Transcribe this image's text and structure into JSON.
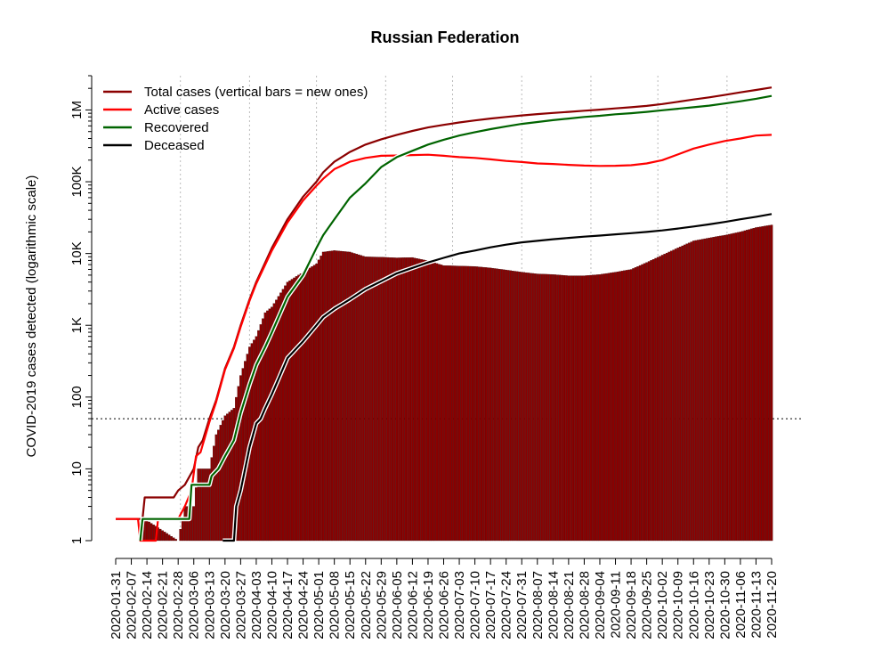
{
  "chart_data": {
    "type": "bar+line",
    "title": "Russian Federation",
    "ylabel": "COVID-2019 cases detected (logarithmic scale)",
    "xlabel": "",
    "y_scale": "log10",
    "ylim": [
      1,
      3000000
    ],
    "xlim": [
      "2020-01-31",
      "2020-11-20"
    ],
    "grid": "vertical dotted at 2020-02-29, 2020-03-31, 2020-04-30, 2020-05-31, 2020-06-30, 2020-07-31, 2020-08-31, 2020-09-30, 2020-10-31",
    "reference_line": {
      "y": 50,
      "style": "dotted"
    },
    "legend_position": "top-left",
    "y_ticks": [
      {
        "value": 1,
        "label": "1"
      },
      {
        "value": 10,
        "label": "10"
      },
      {
        "value": 100,
        "label": "100"
      },
      {
        "value": 1000,
        "label": "1K"
      },
      {
        "value": 10000,
        "label": "10K"
      },
      {
        "value": 100000,
        "label": "100K"
      },
      {
        "value": 1000000,
        "label": "1M"
      }
    ],
    "x_ticks": [
      "2020-01-31",
      "2020-02-07",
      "2020-02-14",
      "2020-02-21",
      "2020-02-28",
      "2020-03-06",
      "2020-03-13",
      "2020-03-20",
      "2020-03-27",
      "2020-04-03",
      "2020-04-10",
      "2020-04-17",
      "2020-04-24",
      "2020-05-01",
      "2020-05-08",
      "2020-05-15",
      "2020-05-22",
      "2020-05-29",
      "2020-06-05",
      "2020-06-12",
      "2020-06-19",
      "2020-06-26",
      "2020-07-03",
      "2020-07-10",
      "2020-07-17",
      "2020-07-24",
      "2020-07-31",
      "2020-08-07",
      "2020-08-14",
      "2020-08-21",
      "2020-08-28",
      "2020-09-04",
      "2020-09-11",
      "2020-09-18",
      "2020-09-25",
      "2020-10-02",
      "2020-10-09",
      "2020-10-16",
      "2020-10-23",
      "2020-10-30",
      "2020-11-06",
      "2020-11-13",
      "2020-11-20"
    ],
    "series": [
      {
        "name": "Total cases (vertical bars = new ones)",
        "kind": "line",
        "color": "#8b0000",
        "points": [
          [
            "2020-01-31",
            2
          ],
          [
            "2020-02-07",
            2
          ],
          [
            "2020-02-12",
            2
          ],
          [
            "2020-02-13",
            4
          ],
          [
            "2020-02-26",
            4
          ],
          [
            "2020-02-28",
            5
          ],
          [
            "2020-03-02",
            6
          ],
          [
            "2020-03-06",
            10
          ],
          [
            "2020-03-08",
            20
          ],
          [
            "2020-03-10",
            25
          ],
          [
            "2020-03-13",
            50
          ],
          [
            "2020-03-16",
            90
          ],
          [
            "2020-03-20",
            250
          ],
          [
            "2020-03-24",
            500
          ],
          [
            "2020-03-27",
            1000
          ],
          [
            "2020-03-31",
            2300
          ],
          [
            "2020-04-03",
            4000
          ],
          [
            "2020-04-07",
            7500
          ],
          [
            "2020-04-10",
            12000
          ],
          [
            "2020-04-17",
            30000
          ],
          [
            "2020-04-24",
            62000
          ],
          [
            "2020-04-30",
            100000
          ],
          [
            "2020-05-03",
            135000
          ],
          [
            "2020-05-08",
            190000
          ],
          [
            "2020-05-15",
            260000
          ],
          [
            "2020-05-22",
            330000
          ],
          [
            "2020-05-29",
            390000
          ],
          [
            "2020-06-05",
            450000
          ],
          [
            "2020-06-12",
            510000
          ],
          [
            "2020-06-19",
            570000
          ],
          [
            "2020-06-26",
            620000
          ],
          [
            "2020-07-03",
            670000
          ],
          [
            "2020-07-10",
            715000
          ],
          [
            "2020-07-17",
            760000
          ],
          [
            "2020-07-24",
            800000
          ],
          [
            "2020-07-31",
            840000
          ],
          [
            "2020-08-07",
            875000
          ],
          [
            "2020-08-14",
            910000
          ],
          [
            "2020-08-21",
            940000
          ],
          [
            "2020-08-28",
            975000
          ],
          [
            "2020-09-04",
            1010000
          ],
          [
            "2020-09-11",
            1050000
          ],
          [
            "2020-09-18",
            1090000
          ],
          [
            "2020-09-25",
            1140000
          ],
          [
            "2020-10-02",
            1210000
          ],
          [
            "2020-10-09",
            1300000
          ],
          [
            "2020-10-16",
            1400000
          ],
          [
            "2020-10-23",
            1500000
          ],
          [
            "2020-10-30",
            1620000
          ],
          [
            "2020-11-06",
            1760000
          ],
          [
            "2020-11-13",
            1900000
          ],
          [
            "2020-11-20",
            2060000
          ]
        ]
      },
      {
        "name": "Active cases",
        "kind": "line",
        "color": "#ff0000",
        "points": [
          [
            "2020-01-31",
            2
          ],
          [
            "2020-02-07",
            2
          ],
          [
            "2020-02-10",
            2
          ],
          [
            "2020-02-11",
            1
          ],
          [
            "2020-02-18",
            1
          ],
          [
            "2020-02-19",
            2
          ],
          [
            "2020-02-28",
            2
          ],
          [
            "2020-03-02",
            3
          ],
          [
            "2020-03-05",
            5
          ],
          [
            "2020-03-07",
            15
          ],
          [
            "2020-03-09",
            17
          ],
          [
            "2020-03-13",
            45
          ],
          [
            "2020-03-16",
            85
          ],
          [
            "2020-03-20",
            240
          ],
          [
            "2020-03-24",
            480
          ],
          [
            "2020-03-27",
            950
          ],
          [
            "2020-03-31",
            2200
          ],
          [
            "2020-04-03",
            3800
          ],
          [
            "2020-04-07",
            7000
          ],
          [
            "2020-04-10",
            11000
          ],
          [
            "2020-04-17",
            27000
          ],
          [
            "2020-04-24",
            55000
          ],
          [
            "2020-04-30",
            88000
          ],
          [
            "2020-05-03",
            110000
          ],
          [
            "2020-05-08",
            150000
          ],
          [
            "2020-05-15",
            190000
          ],
          [
            "2020-05-22",
            215000
          ],
          [
            "2020-05-29",
            230000
          ],
          [
            "2020-06-05",
            232000
          ],
          [
            "2020-06-12",
            235000
          ],
          [
            "2020-06-19",
            238000
          ],
          [
            "2020-06-26",
            230000
          ],
          [
            "2020-07-03",
            220000
          ],
          [
            "2020-07-10",
            215000
          ],
          [
            "2020-07-17",
            205000
          ],
          [
            "2020-07-24",
            195000
          ],
          [
            "2020-07-31",
            188000
          ],
          [
            "2020-08-07",
            180000
          ],
          [
            "2020-08-14",
            177000
          ],
          [
            "2020-08-21",
            172000
          ],
          [
            "2020-08-28",
            168000
          ],
          [
            "2020-09-04",
            166000
          ],
          [
            "2020-09-11",
            167000
          ],
          [
            "2020-09-18",
            170000
          ],
          [
            "2020-09-25",
            180000
          ],
          [
            "2020-10-02",
            200000
          ],
          [
            "2020-10-09",
            240000
          ],
          [
            "2020-10-16",
            290000
          ],
          [
            "2020-10-23",
            330000
          ],
          [
            "2020-10-30",
            370000
          ],
          [
            "2020-11-06",
            400000
          ],
          [
            "2020-11-13",
            440000
          ],
          [
            "2020-11-20",
            450000
          ]
        ]
      },
      {
        "name": "Recovered",
        "kind": "line",
        "color": "#006400",
        "points": [
          [
            "2020-02-11",
            1
          ],
          [
            "2020-02-12",
            2
          ],
          [
            "2020-03-04",
            2
          ],
          [
            "2020-03-05",
            6
          ],
          [
            "2020-03-13",
            6
          ],
          [
            "2020-03-14",
            8
          ],
          [
            "2020-03-17",
            10
          ],
          [
            "2020-03-20",
            15
          ],
          [
            "2020-03-24",
            25
          ],
          [
            "2020-03-27",
            60
          ],
          [
            "2020-03-31",
            150
          ],
          [
            "2020-04-03",
            280
          ],
          [
            "2020-04-07",
            500
          ],
          [
            "2020-04-10",
            800
          ],
          [
            "2020-04-17",
            2500
          ],
          [
            "2020-04-24",
            5000
          ],
          [
            "2020-04-30",
            12000
          ],
          [
            "2020-05-03",
            18000
          ],
          [
            "2020-05-08",
            30000
          ],
          [
            "2020-05-15",
            60000
          ],
          [
            "2020-05-22",
            95000
          ],
          [
            "2020-05-29",
            160000
          ],
          [
            "2020-06-05",
            220000
          ],
          [
            "2020-06-12",
            270000
          ],
          [
            "2020-06-19",
            330000
          ],
          [
            "2020-06-26",
            385000
          ],
          [
            "2020-07-03",
            440000
          ],
          [
            "2020-07-10",
            490000
          ],
          [
            "2020-07-17",
            540000
          ],
          [
            "2020-07-24",
            590000
          ],
          [
            "2020-07-31",
            640000
          ],
          [
            "2020-08-07",
            680000
          ],
          [
            "2020-08-14",
            720000
          ],
          [
            "2020-08-21",
            760000
          ],
          [
            "2020-08-28",
            800000
          ],
          [
            "2020-09-04",
            830000
          ],
          [
            "2020-09-11",
            870000
          ],
          [
            "2020-09-18",
            900000
          ],
          [
            "2020-09-25",
            940000
          ],
          [
            "2020-10-02",
            990000
          ],
          [
            "2020-10-09",
            1040000
          ],
          [
            "2020-10-16",
            1090000
          ],
          [
            "2020-10-23",
            1150000
          ],
          [
            "2020-10-30",
            1230000
          ],
          [
            "2020-11-06",
            1320000
          ],
          [
            "2020-11-13",
            1430000
          ],
          [
            "2020-11-20",
            1570000
          ]
        ]
      },
      {
        "name": "Deceased",
        "kind": "line",
        "color": "#000000",
        "points": [
          [
            "2020-03-19",
            1
          ],
          [
            "2020-03-24",
            1
          ],
          [
            "2020-03-25",
            3
          ],
          [
            "2020-03-27",
            5
          ],
          [
            "2020-03-31",
            20
          ],
          [
            "2020-04-03",
            43
          ],
          [
            "2020-04-05",
            50
          ],
          [
            "2020-04-07",
            70
          ],
          [
            "2020-04-10",
            110
          ],
          [
            "2020-04-13",
            180
          ],
          [
            "2020-04-17",
            350
          ],
          [
            "2020-04-24",
            600
          ],
          [
            "2020-04-30",
            1000
          ],
          [
            "2020-05-03",
            1300
          ],
          [
            "2020-05-08",
            1700
          ],
          [
            "2020-05-15",
            2300
          ],
          [
            "2020-05-22",
            3200
          ],
          [
            "2020-05-29",
            4100
          ],
          [
            "2020-06-05",
            5300
          ],
          [
            "2020-06-12",
            6300
          ],
          [
            "2020-06-19",
            7500
          ],
          [
            "2020-06-26",
            8700
          ],
          [
            "2020-07-03",
            10000
          ],
          [
            "2020-07-10",
            11000
          ],
          [
            "2020-07-17",
            12200
          ],
          [
            "2020-07-24",
            13300
          ],
          [
            "2020-07-31",
            14300
          ],
          [
            "2020-08-07",
            15000
          ],
          [
            "2020-08-14",
            15800
          ],
          [
            "2020-08-21",
            16500
          ],
          [
            "2020-08-28",
            17200
          ],
          [
            "2020-09-04",
            17800
          ],
          [
            "2020-09-11",
            18500
          ],
          [
            "2020-09-18",
            19200
          ],
          [
            "2020-09-25",
            20000
          ],
          [
            "2020-10-02",
            21000
          ],
          [
            "2020-10-09",
            22300
          ],
          [
            "2020-10-16",
            23800
          ],
          [
            "2020-10-23",
            25500
          ],
          [
            "2020-10-30",
            27500
          ],
          [
            "2020-11-06",
            30000
          ],
          [
            "2020-11-13",
            32500
          ],
          [
            "2020-11-20",
            35500
          ]
        ]
      },
      {
        "name": "New cases",
        "kind": "bars",
        "color": "#8b0000",
        "profile": [
          [
            "2020-01-31",
            1
          ],
          [
            "2020-02-11",
            1
          ],
          [
            "2020-02-13",
            2
          ],
          [
            "2020-02-28",
            1
          ],
          [
            "2020-03-02",
            3
          ],
          [
            "2020-03-06",
            3
          ],
          [
            "2020-03-08",
            10
          ],
          [
            "2020-03-13",
            10
          ],
          [
            "2020-03-16",
            30
          ],
          [
            "2020-03-20",
            55
          ],
          [
            "2020-03-24",
            70
          ],
          [
            "2020-03-27",
            200
          ],
          [
            "2020-03-31",
            500
          ],
          [
            "2020-04-03",
            700
          ],
          [
            "2020-04-07",
            1500
          ],
          [
            "2020-04-10",
            1800
          ],
          [
            "2020-04-17",
            4000
          ],
          [
            "2020-04-24",
            5500
          ],
          [
            "2020-04-30",
            7200
          ],
          [
            "2020-05-03",
            10500
          ],
          [
            "2020-05-08",
            11000
          ],
          [
            "2020-05-15",
            10500
          ],
          [
            "2020-05-22",
            9000
          ],
          [
            "2020-05-29",
            8900
          ],
          [
            "2020-06-05",
            8700
          ],
          [
            "2020-06-12",
            8800
          ],
          [
            "2020-06-19",
            7900
          ],
          [
            "2020-06-26",
            6800
          ],
          [
            "2020-07-03",
            6700
          ],
          [
            "2020-07-10",
            6600
          ],
          [
            "2020-07-17",
            6300
          ],
          [
            "2020-07-24",
            5900
          ],
          [
            "2020-07-31",
            5500
          ],
          [
            "2020-08-07",
            5200
          ],
          [
            "2020-08-14",
            5100
          ],
          [
            "2020-08-21",
            4900
          ],
          [
            "2020-08-28",
            4900
          ],
          [
            "2020-09-04",
            5100
          ],
          [
            "2020-09-11",
            5500
          ],
          [
            "2020-09-18",
            6000
          ],
          [
            "2020-09-25",
            7500
          ],
          [
            "2020-10-02",
            9500
          ],
          [
            "2020-10-09",
            12000
          ],
          [
            "2020-10-16",
            15000
          ],
          [
            "2020-10-23",
            16500
          ],
          [
            "2020-10-30",
            18000
          ],
          [
            "2020-11-06",
            20000
          ],
          [
            "2020-11-13",
            23000
          ],
          [
            "2020-11-20",
            25000
          ]
        ]
      }
    ]
  }
}
